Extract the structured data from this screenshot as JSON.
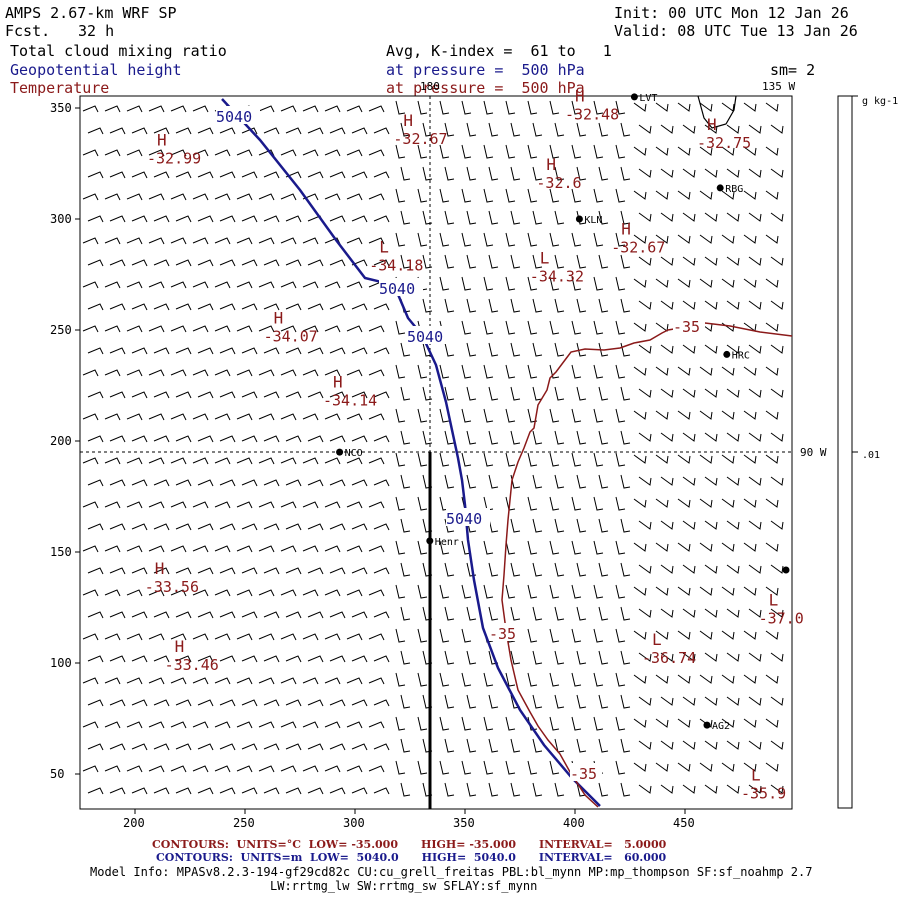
{
  "header": {
    "model": "AMPS 2.67-km WRF SP",
    "fcst_label": "Fcst.",
    "fcst_value": "32 h",
    "init": "Init: 00 UTC Mon 12 Jan 26",
    "valid": "Valid: 08 UTC Tue 13 Jan 26",
    "field1": "Total cloud mixing ratio",
    "field2": "Geopotential height",
    "field3": "Temperature",
    "avg": "Avg, K-index =  61 to   1",
    "pressure1": "at pressure =  500 hPa",
    "pressure2": "at pressure =  500 hPa",
    "smooth": "sm= 2"
  },
  "map": {
    "lon_top_left": "180",
    "lon_top_right": "135 W",
    "lon_right": "90 W",
    "x_ticks": [
      "200",
      "250",
      "300",
      "350",
      "400",
      "450"
    ],
    "y_ticks": [
      "350",
      "300",
      "250",
      "200",
      "150",
      "100",
      "50"
    ],
    "colors": {
      "height": "#1a1a8c",
      "temperature": "#8b1a1a",
      "barb": "#000000"
    },
    "stations": [
      {
        "name": "LVT",
        "x": 427,
        "y": 355
      },
      {
        "name": "RBG",
        "x": 466,
        "y": 314
      },
      {
        "name": "KLN",
        "x": 402,
        "y": 300
      },
      {
        "name": "HRC",
        "x": 469,
        "y": 239
      },
      {
        "name": "NCO",
        "x": 293,
        "y": 195
      },
      {
        "name": "Henr",
        "x": 334,
        "y": 155
      },
      {
        "name": "AG2",
        "x": 460,
        "y": 72
      }
    ],
    "pressure_marks": [
      {
        "mark": "H",
        "value": "-32.99",
        "x": 210,
        "y": 333
      },
      {
        "mark": "H",
        "value": "-32.67",
        "x": 322,
        "y": 342
      },
      {
        "mark": "H",
        "value": "-32.48",
        "x": 400,
        "y": 353
      },
      {
        "mark": "H",
        "value": "-32.75",
        "x": 460,
        "y": 340
      },
      {
        "mark": "H",
        "value": "-32.6",
        "x": 387,
        "y": 322
      },
      {
        "mark": "H",
        "value": "-32.67",
        "x": 421,
        "y": 293
      },
      {
        "mark": "L",
        "value": "-34.18",
        "x": 311,
        "y": 285
      },
      {
        "mark": "L",
        "value": "-34.32",
        "x": 384,
        "y": 280
      },
      {
        "mark": "H",
        "value": "-34.07",
        "x": 263,
        "y": 253
      },
      {
        "mark": "H",
        "value": "-34.14",
        "x": 290,
        "y": 224
      },
      {
        "mark": "H",
        "value": "-33.56",
        "x": 209,
        "y": 140
      },
      {
        "mark": "H",
        "value": "-33.46",
        "x": 218,
        "y": 105
      },
      {
        "mark": "L",
        "value": "-36.74",
        "x": 435,
        "y": 108
      },
      {
        "mark": "L",
        "value": "-37.0",
        "x": 488,
        "y": 126
      },
      {
        "mark": "L",
        "value": "-35.9",
        "x": 480,
        "y": 47
      }
    ],
    "height_labels": [
      "5040",
      "5040",
      "5040",
      "5040"
    ],
    "temp_labels": [
      "-35",
      "-35",
      "-35"
    ]
  },
  "colorbar": {
    "unit": "g kg-1",
    "value": ".01"
  },
  "footer": {
    "temp_contours": "CONTOURS:  UNITS=°C  LOW= -35.000      HIGH= -35.000      INTERVAL=   5.0000",
    "height_contours": "CONTOURS:  UNITS=m  LOW=  5040.0      HIGH=  5040.0      INTERVAL=   60.000",
    "model_info_1": "Model Info: MPASv8.2.3-194-gf29cd82c CU:cu_grell_freitas PBL:bl_mynn MP:mp_thompson SF:sf_noahmp 2.7",
    "model_info_2": "LW:rrtmg_lw SW:rrtmg_sw SFLAY:sf_mynn"
  }
}
